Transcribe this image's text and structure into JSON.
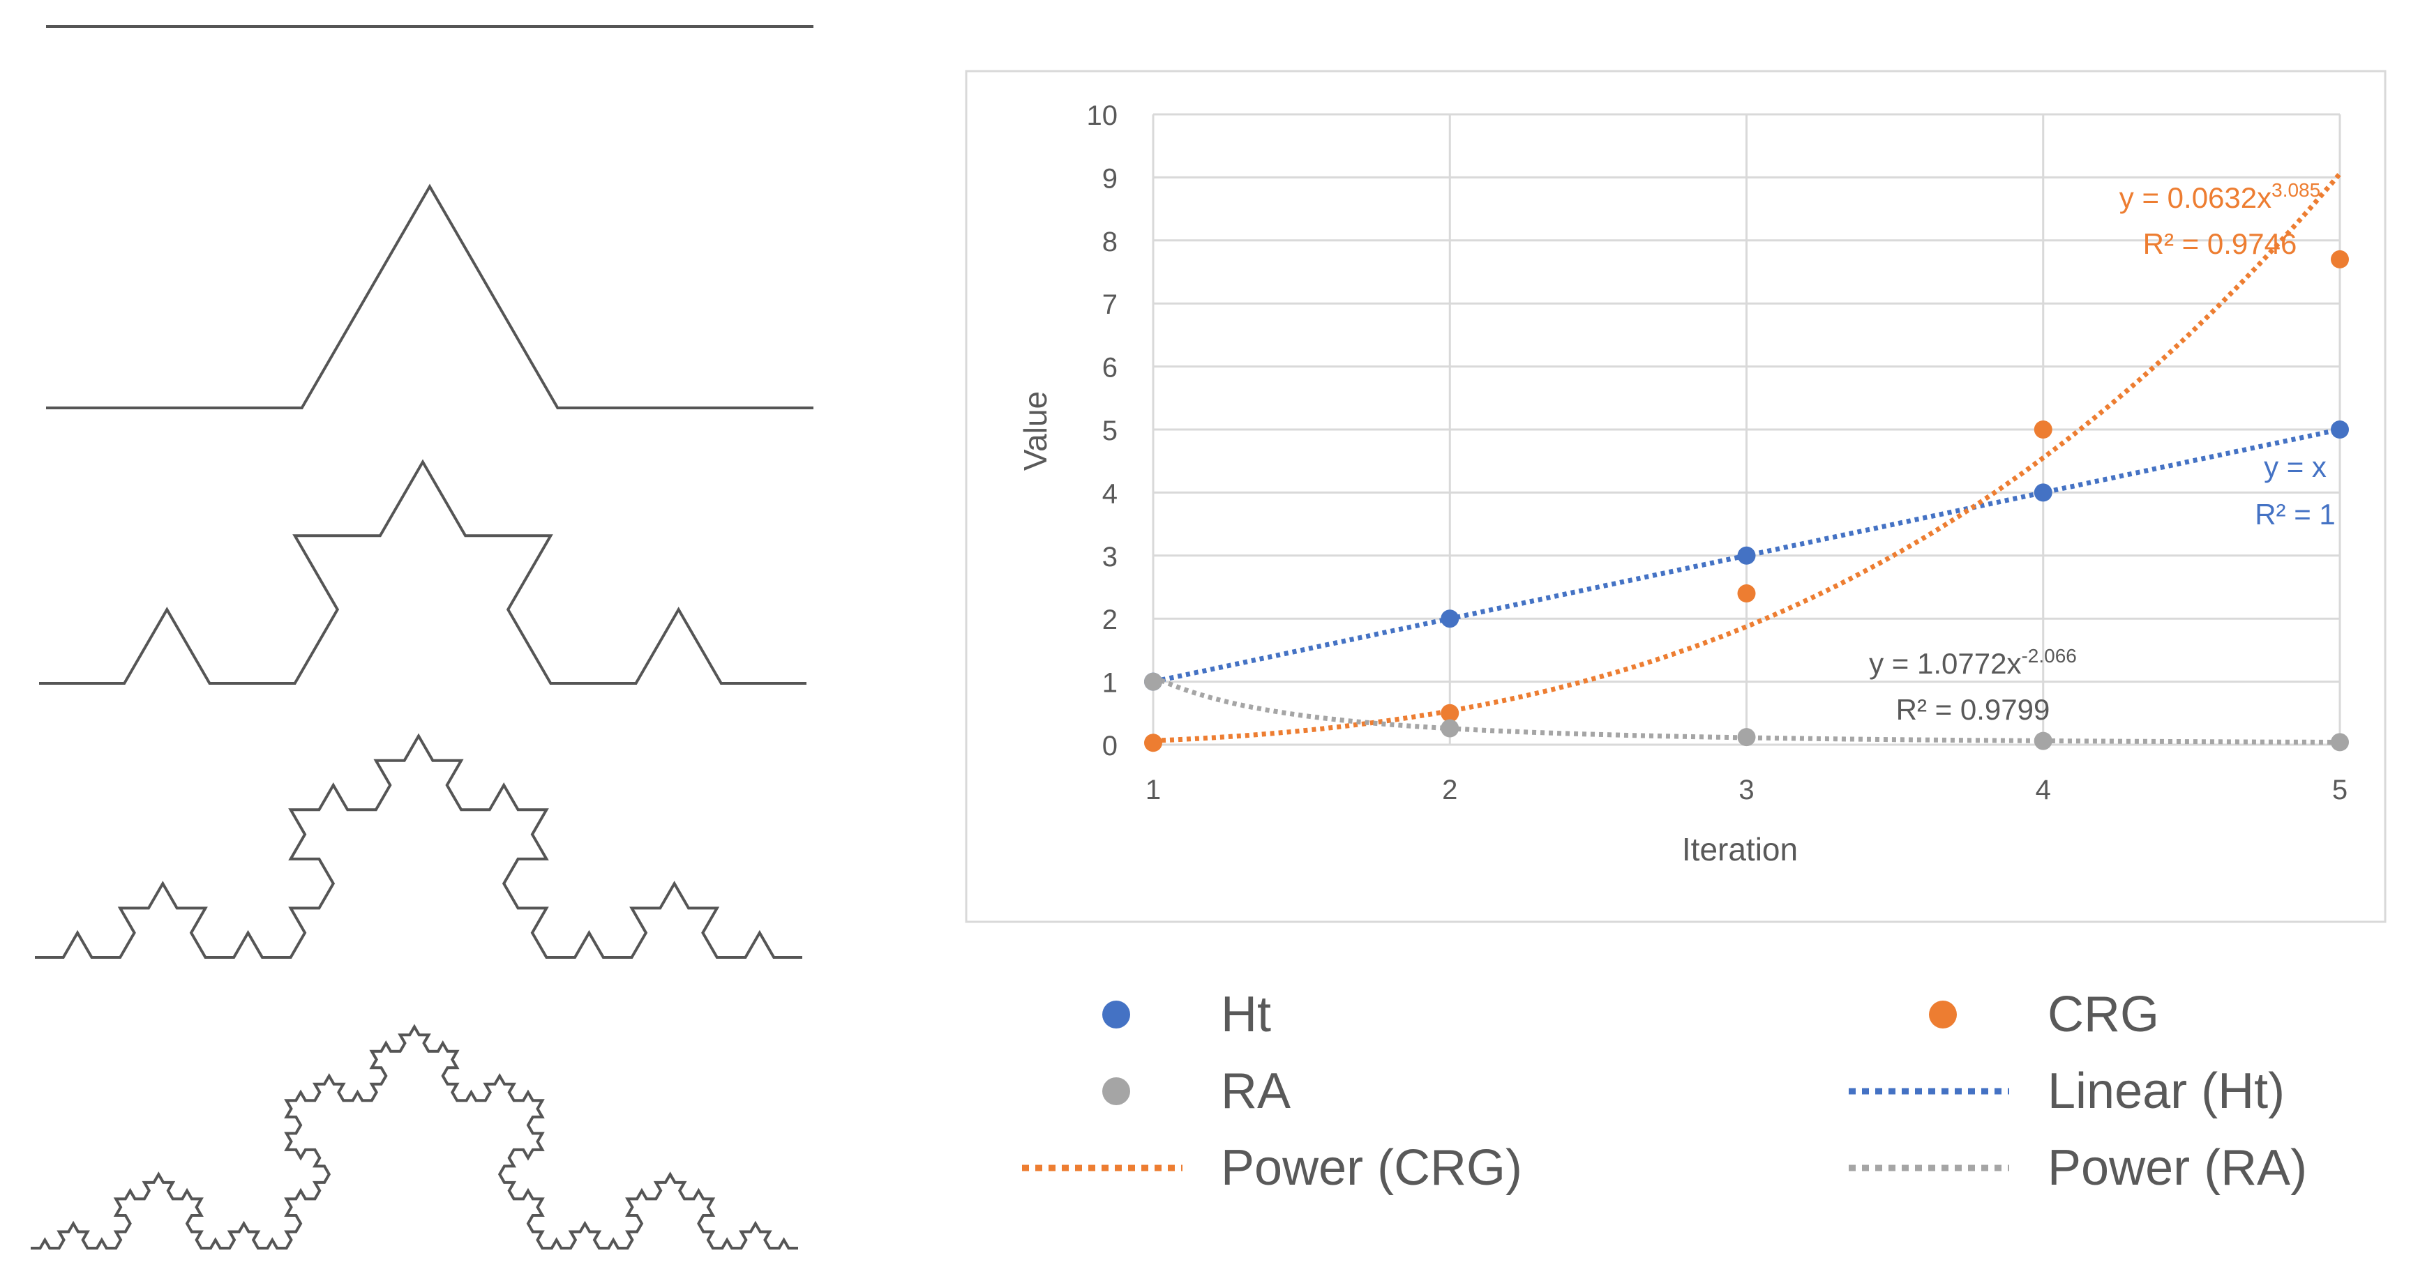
{
  "chart_data": {
    "type": "scatter",
    "xlabel": "Iteration",
    "ylabel": "Value",
    "xlim": [
      1,
      5
    ],
    "ylim": [
      0,
      10
    ],
    "x_ticks": [
      "1",
      "2",
      "3",
      "4",
      "5"
    ],
    "y_ticks": [
      "0",
      "1",
      "2",
      "3",
      "4",
      "5",
      "6",
      "7",
      "8",
      "9",
      "10"
    ],
    "grid": true,
    "legend_position": "bottom",
    "series": [
      {
        "name": "Ht",
        "color": "#4472C4",
        "x": [
          1,
          2,
          3,
          4,
          5
        ],
        "values": [
          1,
          2,
          3,
          4,
          5
        ],
        "marker": "circle"
      },
      {
        "name": "CRG",
        "color": "#ED7D31",
        "x": [
          1,
          2,
          3,
          4,
          5
        ],
        "values": [
          0.03,
          0.5,
          2.4,
          5.0,
          7.7
        ],
        "marker": "circle"
      },
      {
        "name": "RA",
        "color": "#A5A5A5",
        "x": [
          1,
          2,
          3,
          4,
          5
        ],
        "values": [
          1.0,
          0.26,
          0.12,
          0.06,
          0.04
        ],
        "marker": "circle"
      }
    ],
    "trendlines": [
      {
        "name": "Linear (Ht)",
        "color": "#4472C4",
        "kind": "linear",
        "slope": 1,
        "intercept": 0,
        "equation": "y = x",
        "r2": "R² = 1"
      },
      {
        "name": "Power (CRG)",
        "color": "#ED7D31",
        "kind": "power",
        "coef": 0.0632,
        "exponent": 3.085,
        "equation_base": "y = 0.0632x",
        "equation_exp": "3.085",
        "r2": "R² = 0.9746"
      },
      {
        "name": "Power (RA)",
        "color": "#A5A5A5",
        "kind": "power",
        "coef": 1.0772,
        "exponent": -2.066,
        "equation_base": "y = 1.0772x",
        "equation_exp": "-2.066",
        "r2": "R² = 0.9799"
      }
    ],
    "legend": [
      "Ht",
      "CRG",
      "RA",
      "Linear (Ht)",
      "Power (CRG)",
      "Power (RA)"
    ]
  },
  "figure": {
    "left_panel": "koch-curve-iterations",
    "koch_levels": [
      0,
      1,
      2,
      3,
      4
    ],
    "stroke_color": "#555555",
    "plot_border_color": "#D9D9D9",
    "grid_color": "#D9D9D9",
    "text_color": "#595959"
  }
}
